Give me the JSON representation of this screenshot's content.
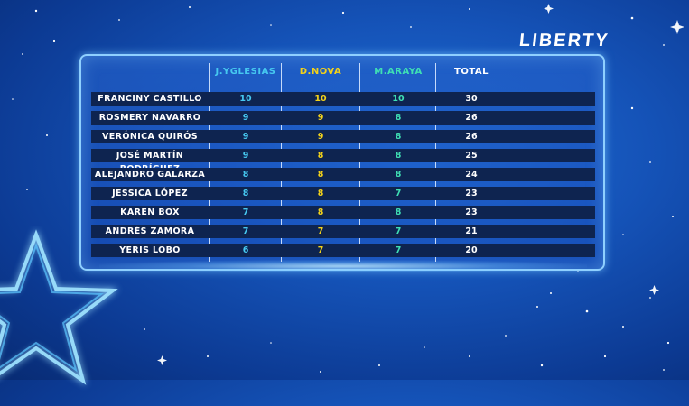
{
  "brand": "LIBERTY",
  "headers": {
    "judge1": "J.YGLESIAS",
    "judge2": "D.NOVA",
    "judge3": "M.ARAYA",
    "total": "TOTAL"
  },
  "colors": {
    "judge1": "#46c8f0",
    "judge2": "#f3d21a",
    "judge3": "#3fe0b4",
    "total": "#ffffff",
    "background": "#1553b8",
    "row_bar": "#0e2450"
  },
  "rows": [
    {
      "name": "FRANCINY CASTILLO",
      "j1": "10",
      "j2": "10",
      "j3": "10",
      "total": "30"
    },
    {
      "name": "ROSMERY NAVARRO",
      "j1": "9",
      "j2": "9",
      "j3": "8",
      "total": "26"
    },
    {
      "name": "VERÓNICA QUIRÓS",
      "j1": "9",
      "j2": "9",
      "j3": "8",
      "total": "26"
    },
    {
      "name": "JOSÉ MARTÍN RODRÍGUEZ",
      "j1": "9",
      "j2": "8",
      "j3": "8",
      "total": "25"
    },
    {
      "name": "ALEJANDRO GALARZA",
      "j1": "8",
      "j2": "8",
      "j3": "8",
      "total": "24"
    },
    {
      "name": "JESSICA LÓPEZ",
      "j1": "8",
      "j2": "8",
      "j3": "7",
      "total": "23"
    },
    {
      "name": "KAREN BOX",
      "j1": "7",
      "j2": "8",
      "j3": "8",
      "total": "23"
    },
    {
      "name": "ANDRÉS ZAMORA",
      "j1": "7",
      "j2": "7",
      "j3": "7",
      "total": "21"
    },
    {
      "name": "YERIS LOBO",
      "j1": "6",
      "j2": "7",
      "j3": "7",
      "total": "20"
    }
  ]
}
